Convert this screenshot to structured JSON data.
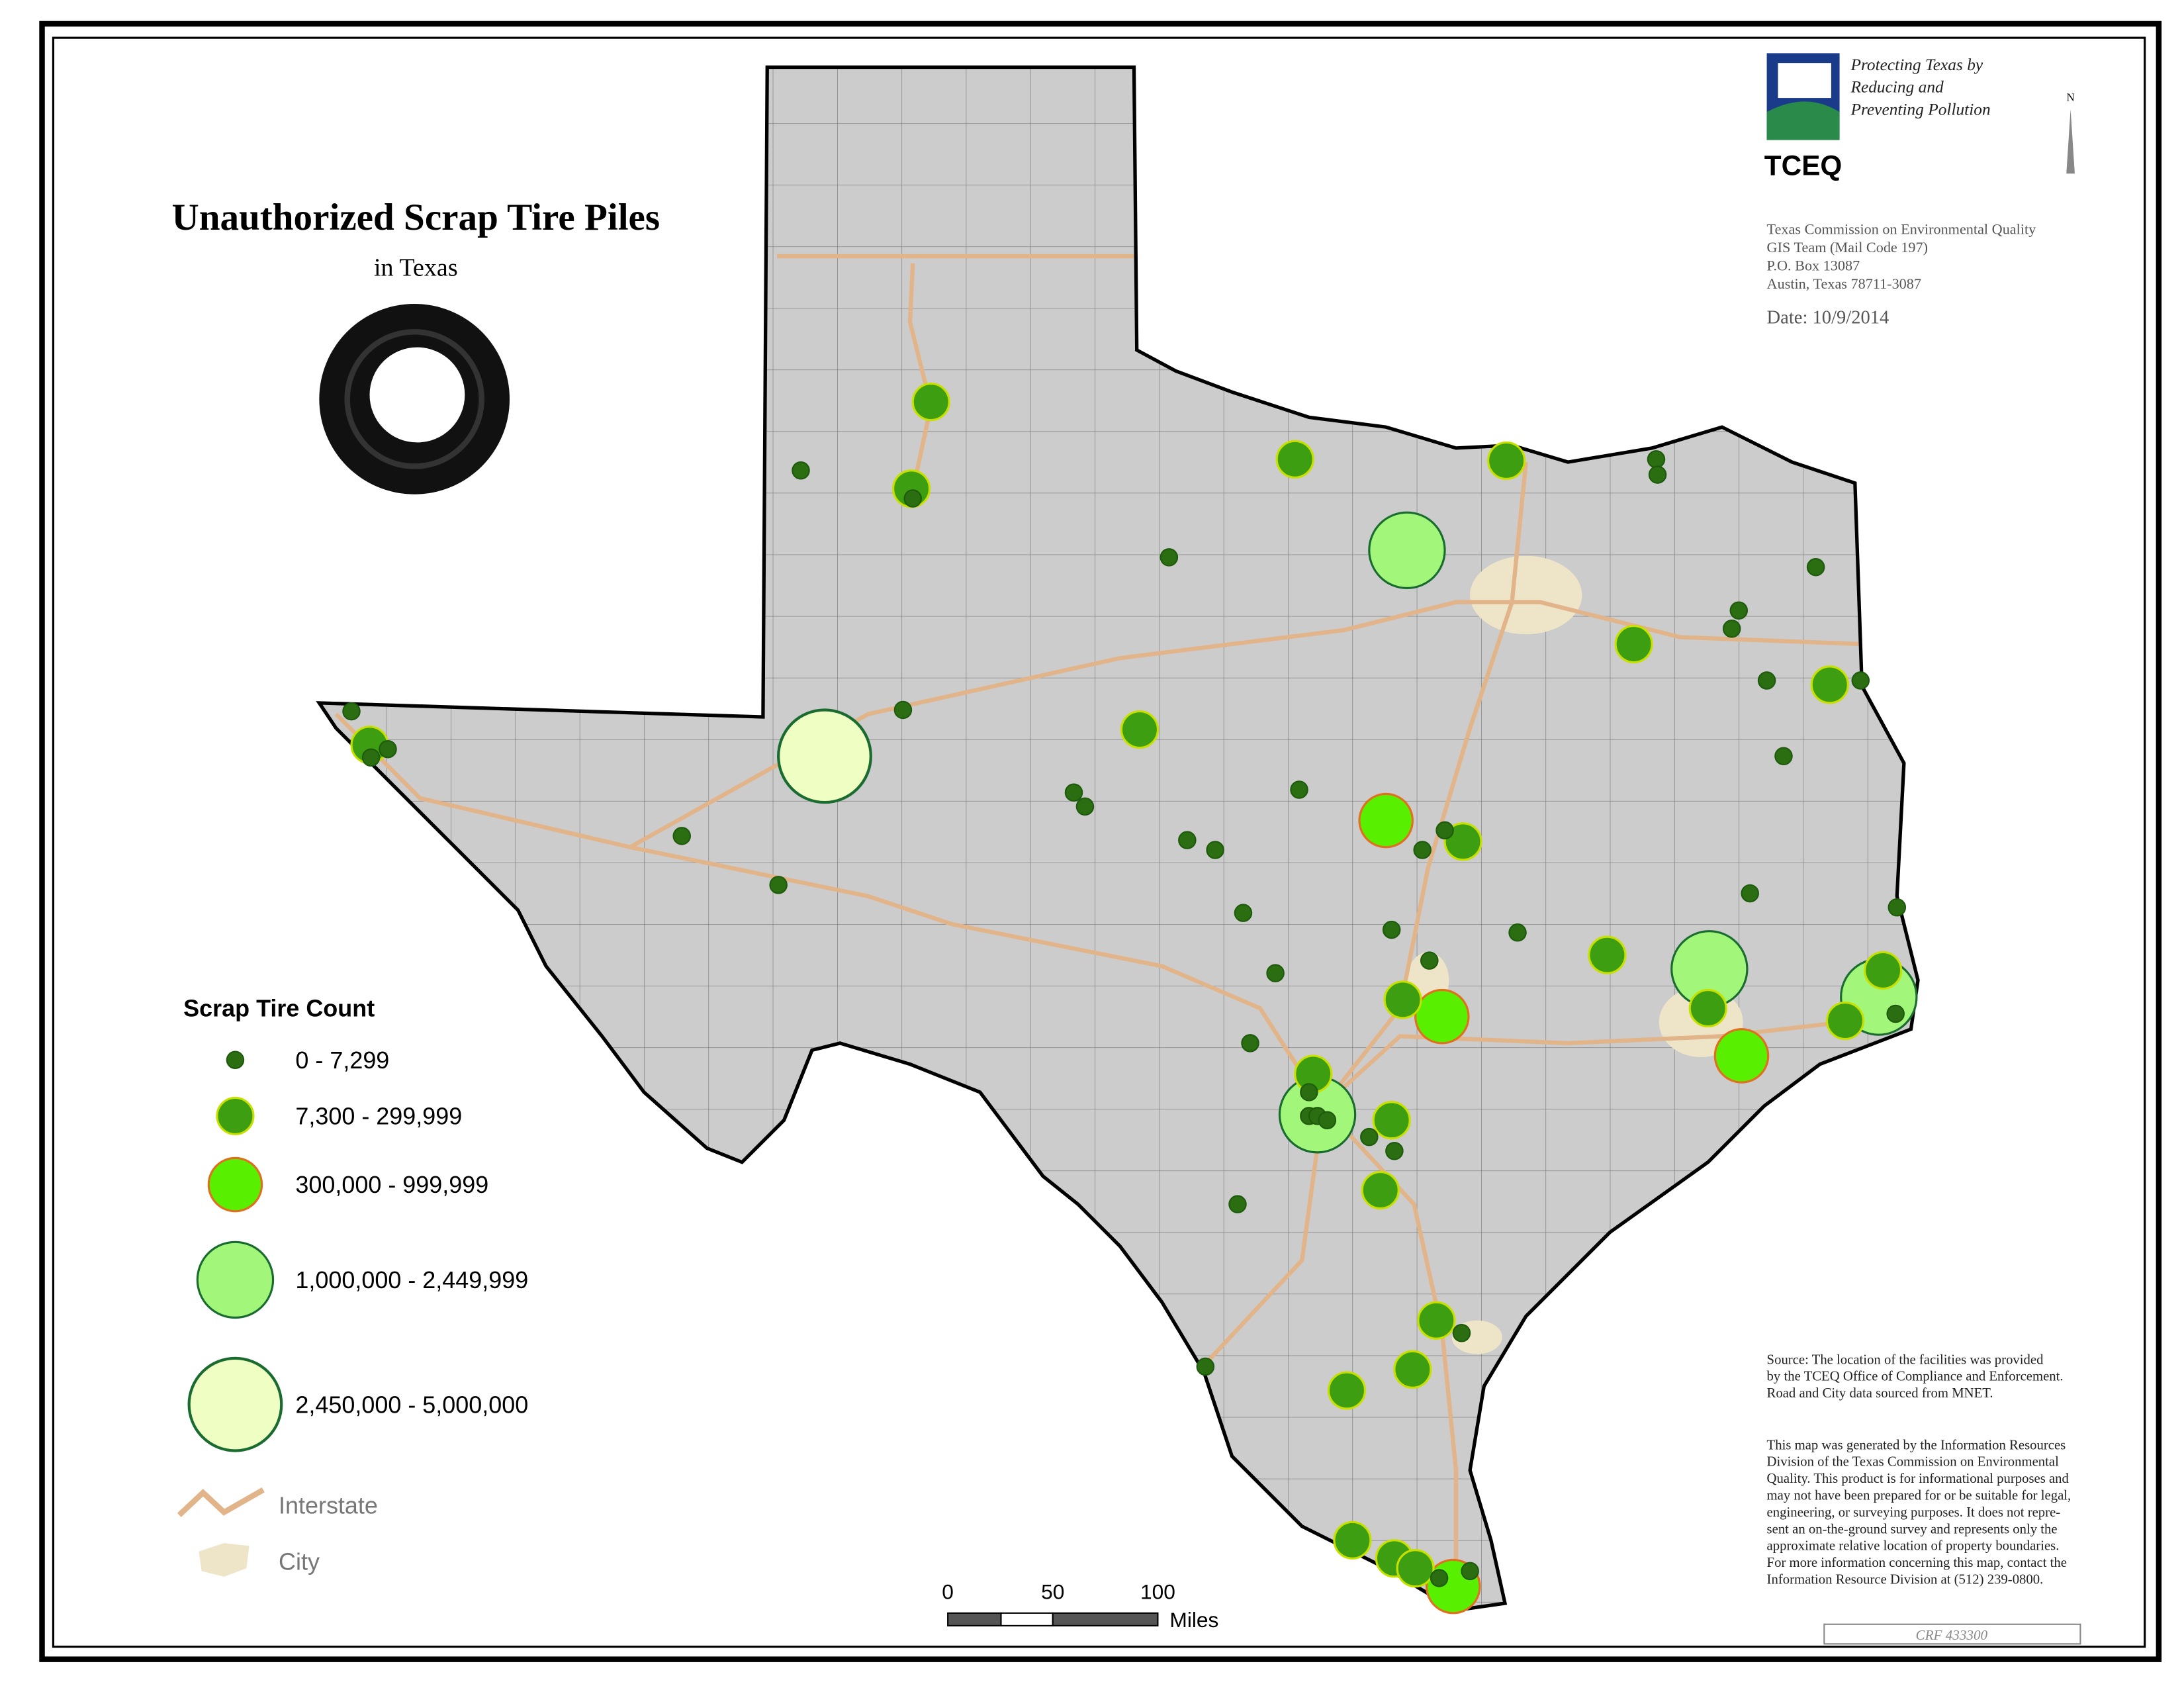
{
  "header": {
    "title": "Unauthorized Scrap Tire Piles",
    "subtitle": "in Texas"
  },
  "agency": {
    "slogan": [
      "Protecting Texas by",
      "Reducing and",
      "Preventing Pollution"
    ],
    "logo_text": "TCEQ",
    "address": [
      "Texas Commission on Environmental Quality",
      "GIS Team  (Mail Code 197)",
      "P.O. Box 13087",
      "Austin, Texas  78711-3087"
    ],
    "date": "Date: 10/9/2014",
    "north": "N"
  },
  "legend": {
    "title": "Scrap Tire Count",
    "classes": [
      "0 - 7,299",
      "7,300 - 299,999",
      "300,000 - 999,999",
      "1,000,000 - 2,449,999",
      "2,450,000 - 5,000,000"
    ],
    "interstate": "Interstate",
    "city": "City"
  },
  "scale": {
    "labels": [
      "0",
      "50",
      "100"
    ],
    "unit": "Miles"
  },
  "notes": {
    "source": [
      "Source:  The location of the facilities was provided",
      "by the TCEQ Office of Compliance and Enforcement.",
      "Road and City data sourced from MNET."
    ],
    "disclaimer": [
      "This map was generated by the Information Resources",
      "Division of the Texas Commission on Environmental",
      "Quality. This product is for informational purposes and",
      "may not have been prepared for or be suitable for legal,",
      "engineering, or surveying purposes. It does not repre-",
      "sent an on-the-ground survey and represents only the",
      "approximate relative location of property boundaries.",
      "For more information concerning this map, contact the",
      "Information Resource Division at (512) 239-0800."
    ],
    "crf": "CRF 433300"
  }
}
